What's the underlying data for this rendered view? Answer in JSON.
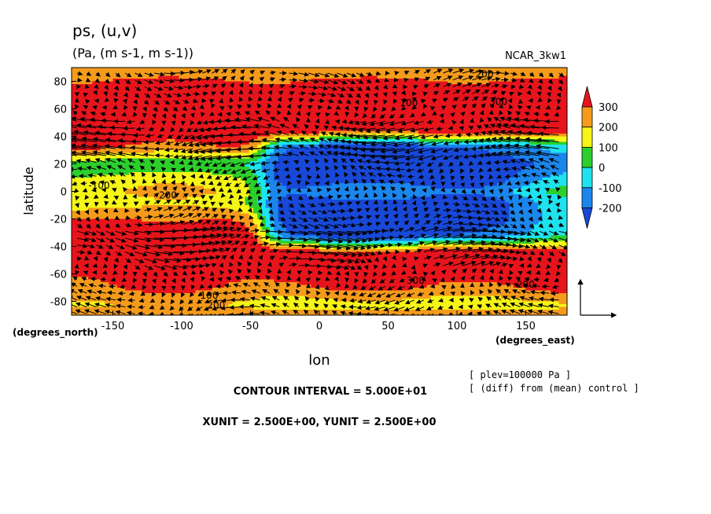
{
  "chart_data": {
    "type": "heatmap",
    "title": "ps, (u,v)",
    "subtitle": "(Pa, (m s-1, m s-1))",
    "model": "NCAR_3kw1",
    "xlabel": "lon",
    "ylabel": "latitude",
    "x_units": "(degrees_east)",
    "y_units": "(degrees_north)",
    "xlim": [
      -180,
      180
    ],
    "ylim": [
      -90,
      90
    ],
    "x_ticks": [
      "-150",
      "-100",
      "-50",
      "0",
      "50",
      "100",
      "150"
    ],
    "x_tick_values": [
      -150,
      -100,
      -50,
      0,
      50,
      100,
      150
    ],
    "y_ticks": [
      "80",
      "60",
      "40",
      "20",
      "0",
      "-20",
      "-40",
      "-60",
      "-80"
    ],
    "y_tick_values": [
      80,
      60,
      40,
      20,
      0,
      -20,
      -40,
      -60,
      -80
    ],
    "colorbar": {
      "labels": [
        "300",
        "200",
        "100",
        "0",
        "-100",
        "-200"
      ],
      "values": [
        300,
        200,
        100,
        0,
        -100,
        -200
      ],
      "colors": [
        "#e8141c",
        "#f59b1b",
        "#f5f516",
        "#2ccf2c",
        "#1ee3ef",
        "#1b86ec",
        "#1848d8"
      ]
    },
    "contour_labels": [
      {
        "text": "200",
        "lon": 120,
        "lat": 83
      },
      {
        "text": "300",
        "lon": 130,
        "lat": 63
      },
      {
        "text": "100",
        "lon": 65,
        "lat": 62
      },
      {
        "text": "200",
        "lon": -110,
        "lat": -5
      },
      {
        "text": "-100",
        "lon": -160,
        "lat": 2
      },
      {
        "text": "300",
        "lon": 70,
        "lat": -67
      },
      {
        "text": "200",
        "lon": 150,
        "lat": -70
      },
      {
        "text": "100",
        "lon": -80,
        "lat": -78
      },
      {
        "text": "200",
        "lon": -75,
        "lat": -85
      }
    ],
    "contour_interval": "CONTOUR INTERVAL = 5.000E+01",
    "vector_units": "XUNIT = 2.500E+00, YUNIT = 2.500E+00",
    "notes": [
      "[ plev=100000 Pa ]",
      "[ (diff) from (mean) control ]"
    ],
    "field_bands": [
      {
        "lat": 88,
        "value": 250
      },
      {
        "lat": 75,
        "value": 350
      },
      {
        "lat": 60,
        "value": 400
      },
      {
        "lat": 45,
        "value": 400
      },
      {
        "lat": 32,
        "value": -250
      },
      {
        "lat": 20,
        "value": -300
      },
      {
        "lat": 8,
        "value": -250
      },
      {
        "lat": 0,
        "value": -150
      },
      {
        "lat": -8,
        "value": -250
      },
      {
        "lat": -20,
        "value": -300
      },
      {
        "lat": -32,
        "value": -250
      },
      {
        "lat": -45,
        "value": 400
      },
      {
        "lat": -58,
        "value": 400
      },
      {
        "lat": -70,
        "value": 300
      },
      {
        "lat": -82,
        "value": 150
      },
      {
        "lat": -88,
        "value": 220
      }
    ],
    "west_band_values": [
      {
        "lat": 88,
        "value": 250
      },
      {
        "lat": 75,
        "value": 350
      },
      {
        "lat": 60,
        "value": 350
      },
      {
        "lat": 45,
        "value": 400
      },
      {
        "lat": 32,
        "value": 300
      },
      {
        "lat": 20,
        "value": 20
      },
      {
        "lat": 8,
        "value": 150
      },
      {
        "lat": 0,
        "value": 200
      },
      {
        "lat": -8,
        "value": 150
      },
      {
        "lat": -20,
        "value": 300
      },
      {
        "lat": -32,
        "value": 400
      },
      {
        "lat": -45,
        "value": 400
      },
      {
        "lat": -58,
        "value": 350
      },
      {
        "lat": -70,
        "value": 300
      },
      {
        "lat": -82,
        "value": 200
      },
      {
        "lat": -88,
        "value": 220
      }
    ],
    "transition_lon": -40
  }
}
